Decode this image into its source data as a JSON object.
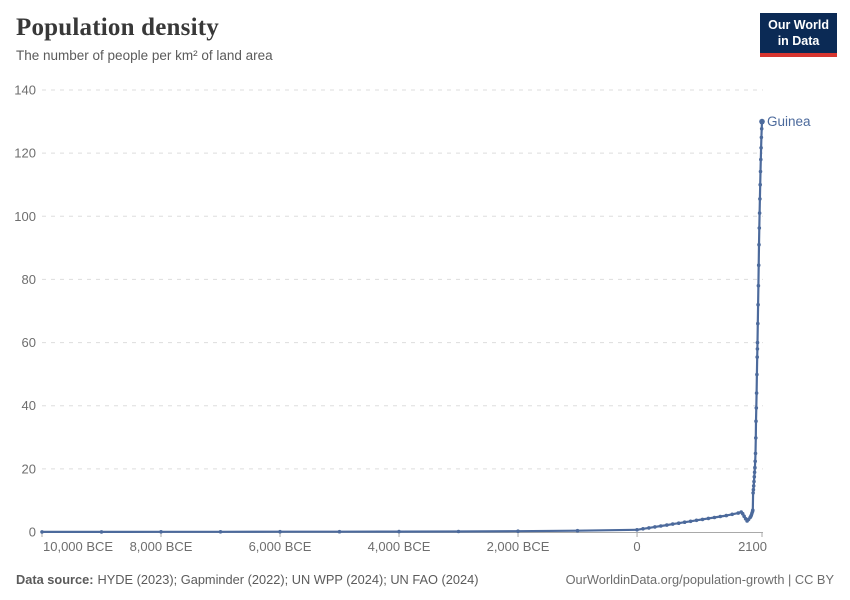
{
  "header": {
    "title": "Population density",
    "subtitle": "The number of people per km² of land area"
  },
  "logo": {
    "line1": "Our World",
    "line2": "in Data"
  },
  "chart_data": {
    "type": "line",
    "title": "Population density",
    "subtitle": "The number of people per km² of land area",
    "xlabel": "",
    "ylabel": "people per km² of land area",
    "xlim": [
      -10000,
      2100
    ],
    "ylim": [
      0,
      140
    ],
    "grid": "horizontal-dashed",
    "legend_position": "end-of-line-label",
    "yticks": [
      0,
      20,
      40,
      60,
      80,
      100,
      120,
      140
    ],
    "xticks": [
      {
        "value": -10000,
        "label": "10,000 BCE"
      },
      {
        "value": -8000,
        "label": "8,000 BCE"
      },
      {
        "value": -6000,
        "label": "6,000 BCE"
      },
      {
        "value": -4000,
        "label": "4,000 BCE"
      },
      {
        "value": -2000,
        "label": "2,000 BCE"
      },
      {
        "value": 0,
        "label": "0"
      },
      {
        "value": 2100,
        "label": "2100"
      }
    ],
    "series": [
      {
        "name": "Guinea",
        "color": "#4C6A9C",
        "points": [
          [
            -10000,
            0.04
          ],
          [
            -9000,
            0.04
          ],
          [
            -8000,
            0.05
          ],
          [
            -7000,
            0.06
          ],
          [
            -6000,
            0.08
          ],
          [
            -5000,
            0.1
          ],
          [
            -4000,
            0.13
          ],
          [
            -3000,
            0.17
          ],
          [
            -2000,
            0.25
          ],
          [
            -1000,
            0.4
          ],
          [
            0,
            0.7
          ],
          [
            100,
            1.0
          ],
          [
            200,
            1.3
          ],
          [
            300,
            1.6
          ],
          [
            400,
            1.9
          ],
          [
            500,
            2.2
          ],
          [
            600,
            2.5
          ],
          [
            700,
            2.8
          ],
          [
            800,
            3.1
          ],
          [
            900,
            3.4
          ],
          [
            1000,
            3.7
          ],
          [
            1100,
            4.0
          ],
          [
            1200,
            4.3
          ],
          [
            1300,
            4.6
          ],
          [
            1400,
            4.9
          ],
          [
            1500,
            5.2
          ],
          [
            1600,
            5.6
          ],
          [
            1700,
            6.0
          ],
          [
            1750,
            6.3
          ],
          [
            1775,
            5.8
          ],
          [
            1800,
            5.0
          ],
          [
            1825,
            4.2
          ],
          [
            1850,
            3.5
          ],
          [
            1875,
            4.0
          ],
          [
            1900,
            4.6
          ],
          [
            1910,
            4.9
          ],
          [
            1920,
            5.3
          ],
          [
            1930,
            5.9
          ],
          [
            1940,
            6.5
          ],
          [
            1945,
            6.9
          ],
          [
            1950,
            12.4
          ],
          [
            1955,
            13.4
          ],
          [
            1960,
            14.6
          ],
          [
            1965,
            16.0
          ],
          [
            1970,
            17.5
          ],
          [
            1975,
            18.9
          ],
          [
            1980,
            20.4
          ],
          [
            1985,
            22.4
          ],
          [
            1990,
            24.9
          ],
          [
            1995,
            29.8
          ],
          [
            2000,
            35.1
          ],
          [
            2005,
            39.3
          ],
          [
            2010,
            44.0
          ],
          [
            2015,
            49.9
          ],
          [
            2020,
            55.4
          ],
          [
            2023,
            58.0
          ],
          [
            2025,
            60.0
          ],
          [
            2030,
            66.0
          ],
          [
            2035,
            72.0
          ],
          [
            2040,
            78.0
          ],
          [
            2045,
            84.5
          ],
          [
            2050,
            91.0
          ],
          [
            2055,
            96.3
          ],
          [
            2060,
            101.0
          ],
          [
            2065,
            105.5
          ],
          [
            2070,
            110.0
          ],
          [
            2075,
            114.2
          ],
          [
            2080,
            118.0
          ],
          [
            2085,
            121.7
          ],
          [
            2090,
            125.0
          ],
          [
            2095,
            127.7
          ],
          [
            2100,
            130.0
          ]
        ]
      }
    ]
  },
  "footer": {
    "source_label": "Data source:",
    "source_text": "HYDE (2023); Gapminder (2022); UN WPP (2024); UN FAO (2024)",
    "citation": "OurWorldinData.org/population-growth | CC BY"
  },
  "colors": {
    "line": "#4C6A9C",
    "grid": "#dddddd",
    "axis": "#a9a9a9",
    "tick_label": "#6e6e6e",
    "logo_bg": "#0b2a55",
    "logo_accent": "#d7352f"
  }
}
